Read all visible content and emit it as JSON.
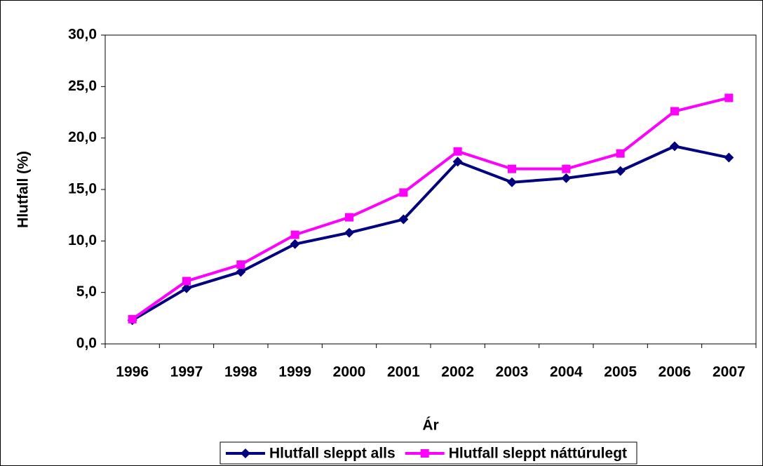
{
  "chart_data": {
    "type": "line",
    "x_label": "Ár",
    "y_label": "Hlutfall (%)",
    "categories": [
      "1996",
      "1997",
      "1998",
      "1999",
      "2000",
      "2001",
      "2002",
      "2003",
      "2004",
      "2005",
      "2006",
      "2007"
    ],
    "series": [
      {
        "name": "Hlutfall sleppt alls",
        "color": "#000080",
        "marker": "diamond",
        "values": [
          2.3,
          5.4,
          7.0,
          9.7,
          10.8,
          12.1,
          17.7,
          15.7,
          16.1,
          16.8,
          19.2,
          18.1
        ]
      },
      {
        "name": "Hlutfall sleppt náttúrulegt",
        "color": "#ff00ff",
        "marker": "square",
        "values": [
          2.4,
          6.1,
          7.7,
          10.6,
          12.3,
          14.7,
          18.7,
          17.0,
          17.0,
          18.5,
          22.6,
          23.9
        ]
      }
    ],
    "ylim": [
      0,
      30
    ],
    "yticks": [
      {
        "value": 0,
        "label": "0,0"
      },
      {
        "value": 5,
        "label": "5,0"
      },
      {
        "value": 10,
        "label": "10,0"
      },
      {
        "value": 15,
        "label": "15,0"
      },
      {
        "value": 20,
        "label": "20,0"
      },
      {
        "value": 25,
        "label": "25,0"
      },
      {
        "value": 30,
        "label": "30,0"
      }
    ],
    "grid": false,
    "legend": "bottom"
  }
}
